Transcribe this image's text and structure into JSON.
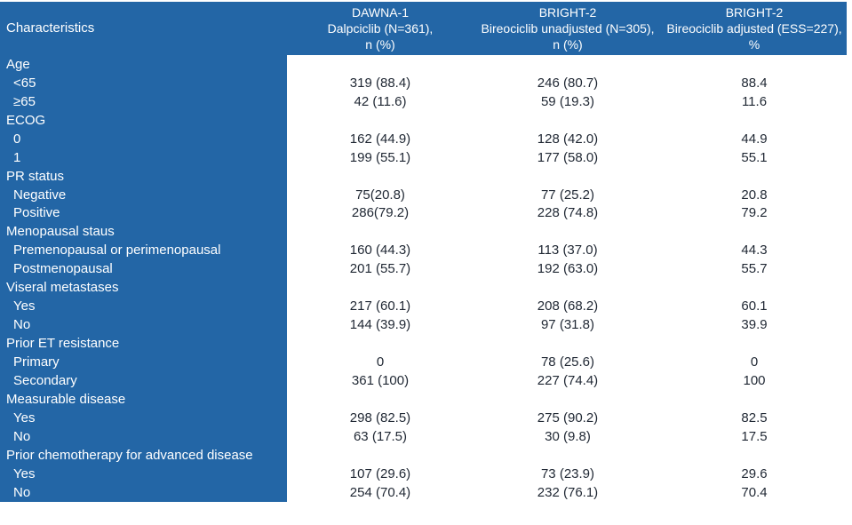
{
  "colors": {
    "header_and_label_background": "#2366a6",
    "label_text": "#ffffff",
    "value_text": "#1f2733"
  },
  "header": {
    "col1": "Characteristics",
    "col2": [
      "DAWNA-1",
      "Dalpciclib (N=361),",
      "n (%)"
    ],
    "col3": [
      "BRIGHT-2",
      "Bireociclib unadjusted (N=305),",
      "n (%)"
    ],
    "col4": [
      "BRIGHT-2",
      "Bireociclib adjusted (ESS=227),",
      "%"
    ]
  },
  "rows": [
    {
      "type": "category",
      "label": "Age",
      "dawna": "",
      "bright_unadjusted": "",
      "bright_adjusted": ""
    },
    {
      "type": "item",
      "label": "<65",
      "dawna": "319 (88.4)",
      "bright_unadjusted": "246 (80.7)",
      "bright_adjusted": "88.4"
    },
    {
      "type": "item",
      "label": "≥65",
      "dawna": "42 (11.6)",
      "bright_unadjusted": "59 (19.3)",
      "bright_adjusted": "11.6"
    },
    {
      "type": "category",
      "label": "ECOG",
      "dawna": "",
      "bright_unadjusted": "",
      "bright_adjusted": ""
    },
    {
      "type": "item",
      "label": "0",
      "dawna": "162 (44.9)",
      "bright_unadjusted": "128 (42.0)",
      "bright_adjusted": "44.9"
    },
    {
      "type": "item",
      "label": "1",
      "dawna": "199 (55.1)",
      "bright_unadjusted": "177 (58.0)",
      "bright_adjusted": "55.1"
    },
    {
      "type": "category",
      "label": "PR status",
      "dawna": "",
      "bright_unadjusted": "",
      "bright_adjusted": ""
    },
    {
      "type": "item",
      "label": "Negative",
      "dawna": "75(20.8)",
      "bright_unadjusted": "77 (25.2)",
      "bright_adjusted": "20.8"
    },
    {
      "type": "item",
      "label": "Positive",
      "dawna": "286(79.2)",
      "bright_unadjusted": "228 (74.8)",
      "bright_adjusted": "79.2"
    },
    {
      "type": "category",
      "label": "Menopausal staus",
      "dawna": "",
      "bright_unadjusted": "",
      "bright_adjusted": ""
    },
    {
      "type": "item",
      "label": "Premenopausal or perimenopausal",
      "dawna": "160 (44.3)",
      "bright_unadjusted": "113 (37.0)",
      "bright_adjusted": "44.3"
    },
    {
      "type": "item",
      "label": "Postmenopausal",
      "dawna": "201 (55.7)",
      "bright_unadjusted": "192 (63.0)",
      "bright_adjusted": "55.7"
    },
    {
      "type": "category",
      "label": "Viseral metastases",
      "dawna": "",
      "bright_unadjusted": "",
      "bright_adjusted": ""
    },
    {
      "type": "item",
      "label": "Yes",
      "dawna": "217 (60.1)",
      "bright_unadjusted": "208 (68.2)",
      "bright_adjusted": "60.1"
    },
    {
      "type": "item",
      "label": "No",
      "dawna": "144 (39.9)",
      "bright_unadjusted": "97 (31.8)",
      "bright_adjusted": "39.9"
    },
    {
      "type": "category",
      "label": "Prior ET resistance",
      "dawna": "",
      "bright_unadjusted": "",
      "bright_adjusted": ""
    },
    {
      "type": "item",
      "label": "Primary",
      "dawna": "0",
      "bright_unadjusted": "78 (25.6)",
      "bright_adjusted": "0"
    },
    {
      "type": "item",
      "label": "Secondary",
      "dawna": "361 (100)",
      "bright_unadjusted": "227 (74.4)",
      "bright_adjusted": "100"
    },
    {
      "type": "category",
      "label": "Measurable disease",
      "dawna": "",
      "bright_unadjusted": "",
      "bright_adjusted": ""
    },
    {
      "type": "item",
      "label": "Yes",
      "dawna": "298 (82.5)",
      "bright_unadjusted": "275 (90.2)",
      "bright_adjusted": "82.5"
    },
    {
      "type": "item",
      "label": "No",
      "dawna": "63 (17.5)",
      "bright_unadjusted": "30 (9.8)",
      "bright_adjusted": "17.5"
    },
    {
      "type": "category",
      "label": "Prior chemotherapy for advanced disease",
      "dawna": "",
      "bright_unadjusted": "",
      "bright_adjusted": ""
    },
    {
      "type": "item",
      "label": "Yes",
      "dawna": "107 (29.6)",
      "bright_unadjusted": "73 (23.9)",
      "bright_adjusted": "29.6"
    },
    {
      "type": "item",
      "label": "No",
      "dawna": "254 (70.4)",
      "bright_unadjusted": "232 (76.1)",
      "bright_adjusted": "70.4"
    }
  ]
}
